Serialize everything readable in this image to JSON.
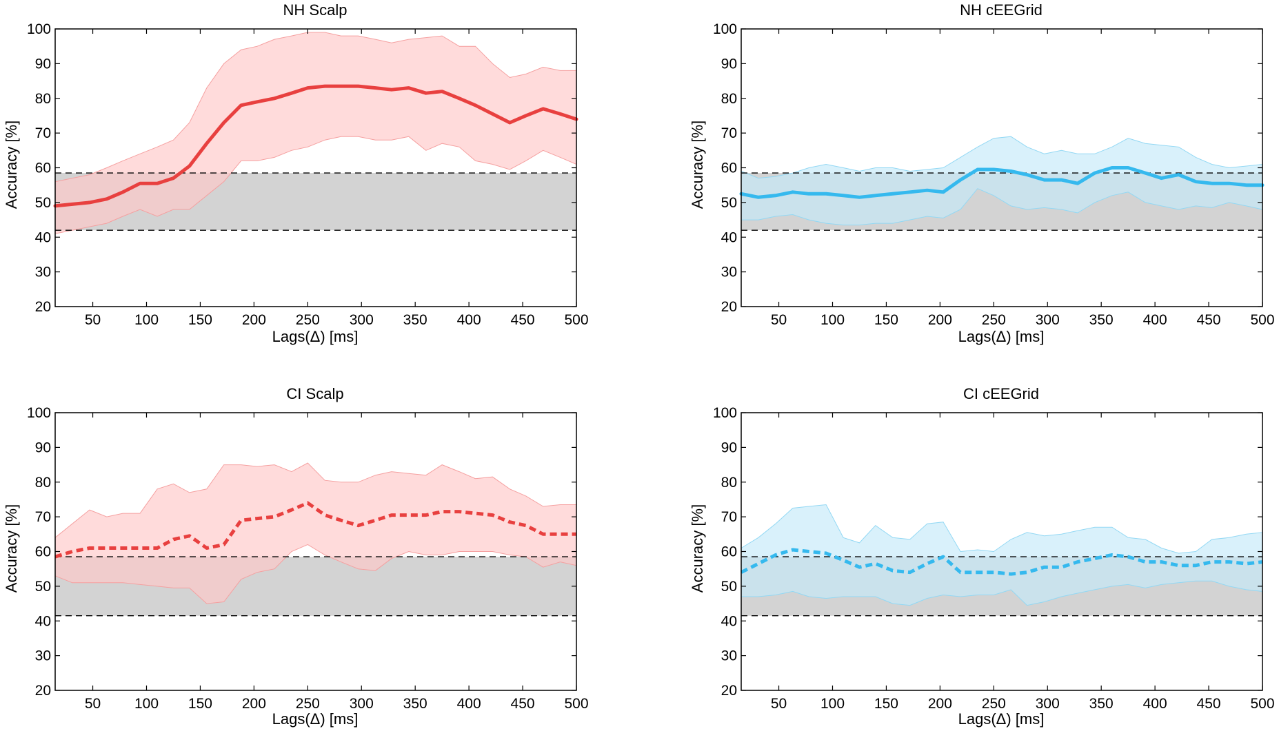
{
  "figure": {
    "colors": {
      "red_line": "#e8403f",
      "red_band": "#ffc8c8",
      "red_band_edge": "#f5a0a0",
      "blue_line": "#35b9ee",
      "blue_band": "#c5eaf9",
      "blue_band_edge": "#92d8f4",
      "chance_band": "#d3d3d3",
      "axis": "#000000"
    }
  },
  "chart_data": [
    {
      "type": "line",
      "title": "NH Scalp",
      "xlabel": "Lags(Δ) [ms]",
      "ylabel": "Accuracy [%]",
      "xlim": [
        15,
        500
      ],
      "ylim": [
        20,
        100
      ],
      "xticks": [
        50,
        100,
        150,
        200,
        250,
        300,
        350,
        400,
        450,
        500
      ],
      "yticks": [
        20,
        30,
        40,
        50,
        60,
        70,
        80,
        90,
        100
      ],
      "chance": [
        42,
        58.5
      ],
      "line_style": "solid",
      "color": "red",
      "x": [
        15,
        31,
        47,
        63,
        78,
        94,
        110,
        125,
        140,
        156,
        172,
        188,
        203,
        219,
        235,
        250,
        266,
        281,
        297,
        313,
        328,
        344,
        360,
        375,
        391,
        406,
        422,
        438,
        453,
        469,
        485,
        500
      ],
      "mean": [
        49,
        49.5,
        50,
        51,
        53,
        55.5,
        55.5,
        57,
        60.5,
        67,
        73,
        78,
        79,
        80,
        81.5,
        83,
        83.5,
        83.5,
        83.5,
        83,
        82.5,
        83,
        81.5,
        82,
        80,
        78,
        75.5,
        73,
        75,
        77,
        75.5,
        74
      ],
      "upper": [
        56,
        57,
        58,
        60,
        62,
        64,
        66,
        68,
        73,
        83,
        90,
        94,
        95,
        97,
        98,
        99,
        99,
        98,
        98,
        97,
        96,
        97,
        97.5,
        98,
        95,
        95,
        90,
        86,
        87,
        89,
        88,
        88
      ],
      "lower": [
        41,
        42,
        43,
        44,
        46,
        48,
        46,
        48,
        48,
        52,
        56,
        62,
        62,
        63,
        65,
        66,
        68,
        69,
        69,
        68,
        68,
        69,
        65,
        67,
        66,
        62,
        61,
        59.5,
        62,
        65,
        63,
        61
      ]
    },
    {
      "type": "line",
      "title": "NH cEEGrid",
      "xlabel": "Lags(Δ) [ms]",
      "ylabel": "Accuracy [%]",
      "xlim": [
        15,
        500
      ],
      "ylim": [
        20,
        100
      ],
      "xticks": [
        50,
        100,
        150,
        200,
        250,
        300,
        350,
        400,
        450,
        500
      ],
      "yticks": [
        20,
        30,
        40,
        50,
        60,
        70,
        80,
        90,
        100
      ],
      "chance": [
        42,
        58.5
      ],
      "line_style": "solid",
      "color": "blue",
      "x": [
        15,
        31,
        47,
        63,
        78,
        94,
        110,
        125,
        140,
        156,
        172,
        188,
        203,
        219,
        235,
        250,
        266,
        281,
        297,
        313,
        328,
        344,
        360,
        375,
        391,
        406,
        422,
        438,
        453,
        469,
        485,
        500
      ],
      "mean": [
        52.5,
        51.5,
        52,
        53,
        52.5,
        52.5,
        52,
        51.5,
        52,
        52.5,
        53,
        53.5,
        53,
        56.5,
        59.5,
        59.5,
        59,
        58,
        56.5,
        56.5,
        55.5,
        58.5,
        60,
        60,
        58.5,
        57,
        58,
        56,
        55.5,
        55.5,
        55,
        55
      ],
      "upper": [
        59,
        57,
        57.5,
        58.5,
        60,
        61,
        60,
        59,
        60,
        60,
        59,
        59.5,
        60,
        63,
        66,
        68.5,
        69,
        66,
        64,
        65,
        64,
        64,
        66,
        68.5,
        67,
        66.5,
        66,
        63,
        61,
        60,
        60.5,
        61
      ],
      "lower": [
        45,
        45,
        46,
        46.5,
        45,
        44,
        43.5,
        43.5,
        44,
        44,
        45,
        46,
        45.5,
        48,
        54,
        52,
        49,
        48,
        48.5,
        48,
        47,
        50,
        52,
        53,
        50,
        49,
        48,
        49,
        48.5,
        50,
        49,
        48
      ]
    },
    {
      "type": "line",
      "title": "CI Scalp",
      "xlabel": "Lags(Δ) [ms]",
      "ylabel": "Accuracy [%]",
      "xlim": [
        15,
        500
      ],
      "ylim": [
        20,
        100
      ],
      "xticks": [
        50,
        100,
        150,
        200,
        250,
        300,
        350,
        400,
        450,
        500
      ],
      "yticks": [
        20,
        30,
        40,
        50,
        60,
        70,
        80,
        90,
        100
      ],
      "chance": [
        41.5,
        58.5
      ],
      "line_style": "dashed",
      "color": "red",
      "x": [
        15,
        31,
        47,
        63,
        78,
        94,
        110,
        125,
        140,
        156,
        172,
        188,
        203,
        219,
        235,
        250,
        266,
        281,
        297,
        313,
        328,
        344,
        360,
        375,
        391,
        406,
        422,
        438,
        453,
        469,
        485,
        500
      ],
      "mean": [
        58.5,
        60,
        61,
        61,
        61,
        61,
        61,
        63.5,
        64.5,
        61,
        62,
        69,
        69.5,
        70,
        72,
        74,
        70.5,
        69,
        67.5,
        69,
        70.5,
        70.5,
        70.5,
        71.5,
        71.5,
        71,
        70.5,
        68.5,
        67.5,
        65,
        65,
        65
      ],
      "upper": [
        64,
        68,
        72,
        70,
        71,
        71,
        78,
        79.5,
        77,
        78,
        85,
        85,
        84.5,
        85,
        83,
        85.5,
        80.5,
        80,
        80,
        82,
        83,
        82.5,
        82,
        85,
        83,
        81,
        81.5,
        78,
        76,
        73,
        73.5,
        73.5
      ],
      "lower": [
        53,
        51,
        51,
        51,
        51,
        50.5,
        50,
        49.5,
        49.5,
        45,
        45.5,
        52,
        54,
        55,
        60,
        62,
        59,
        57,
        55,
        54.5,
        58,
        60,
        59,
        59,
        60,
        60,
        60,
        59,
        58.5,
        55.5,
        57,
        56
      ]
    },
    {
      "type": "line",
      "title": "CI cEEGrid",
      "xlabel": "Lags(Δ) [ms]",
      "ylabel": "Accuracy [%]",
      "xlim": [
        15,
        500
      ],
      "ylim": [
        20,
        100
      ],
      "xticks": [
        50,
        100,
        150,
        200,
        250,
        300,
        350,
        400,
        450,
        500
      ],
      "yticks": [
        20,
        30,
        40,
        50,
        60,
        70,
        80,
        90,
        100
      ],
      "chance": [
        41.5,
        58.5
      ],
      "line_style": "dashed",
      "color": "blue",
      "x": [
        15,
        31,
        47,
        63,
        78,
        94,
        110,
        125,
        140,
        156,
        172,
        188,
        203,
        219,
        235,
        250,
        266,
        281,
        297,
        313,
        328,
        344,
        360,
        375,
        391,
        406,
        422,
        438,
        453,
        469,
        485,
        500
      ],
      "mean": [
        54,
        56.5,
        59,
        60.5,
        60,
        59.5,
        57.5,
        55.5,
        56.5,
        54.5,
        54,
        56.5,
        58.5,
        54,
        54,
        54,
        53.5,
        54,
        55.5,
        55.5,
        57,
        58,
        59,
        58.5,
        57,
        57,
        56,
        56,
        57,
        57,
        56.5,
        57
      ],
      "upper": [
        61,
        64,
        68,
        72.5,
        73,
        73.5,
        64,
        62.5,
        67.5,
        64,
        63.5,
        68,
        68.5,
        60,
        60.5,
        60,
        63.5,
        65.5,
        64.5,
        65,
        66,
        67,
        67,
        64,
        63.5,
        61,
        59.5,
        60,
        63.5,
        64,
        65,
        65.5
      ],
      "lower": [
        47,
        47,
        47.5,
        48.5,
        47,
        46.5,
        47,
        47,
        47,
        45,
        44.5,
        46.5,
        47.5,
        47,
        47.5,
        47.5,
        49,
        44.5,
        45.5,
        47,
        48,
        49,
        50,
        50.5,
        49.5,
        50.5,
        51,
        51.5,
        51.5,
        50,
        49,
        48.5
      ]
    }
  ]
}
